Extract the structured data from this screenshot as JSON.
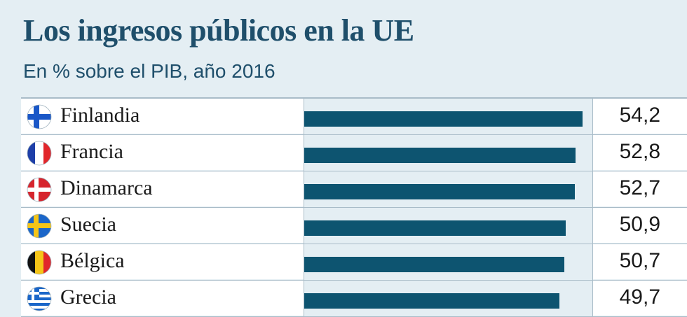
{
  "title": "Los ingresos públicos en la UE",
  "subtitle": "En % sobre el PIB, año 2016",
  "colors": {
    "bar": "#0d5470",
    "title": "#1f4f6b",
    "background": "#e4eef3"
  },
  "chart_data": {
    "type": "bar",
    "orientation": "horizontal",
    "title": "Los ingresos públicos en la UE",
    "subtitle": "En % sobre el PIB, año 2016",
    "categories": [
      "Finlandia",
      "Francia",
      "Dinamarca",
      "Suecia",
      "Bélgica",
      "Grecia"
    ],
    "values": [
      54.2,
      52.8,
      52.7,
      50.9,
      50.7,
      49.7
    ],
    "value_labels": [
      "54,2",
      "52,8",
      "52,7",
      "50,9",
      "50,7",
      "49,7"
    ],
    "flags": [
      "finland-flag-icon",
      "france-flag-icon",
      "denmark-flag-icon",
      "sweden-flag-icon",
      "belgium-flag-icon",
      "greece-flag-icon"
    ],
    "xlim": [
      0,
      55
    ],
    "xlabel": "",
    "ylabel": "",
    "grid": false
  }
}
